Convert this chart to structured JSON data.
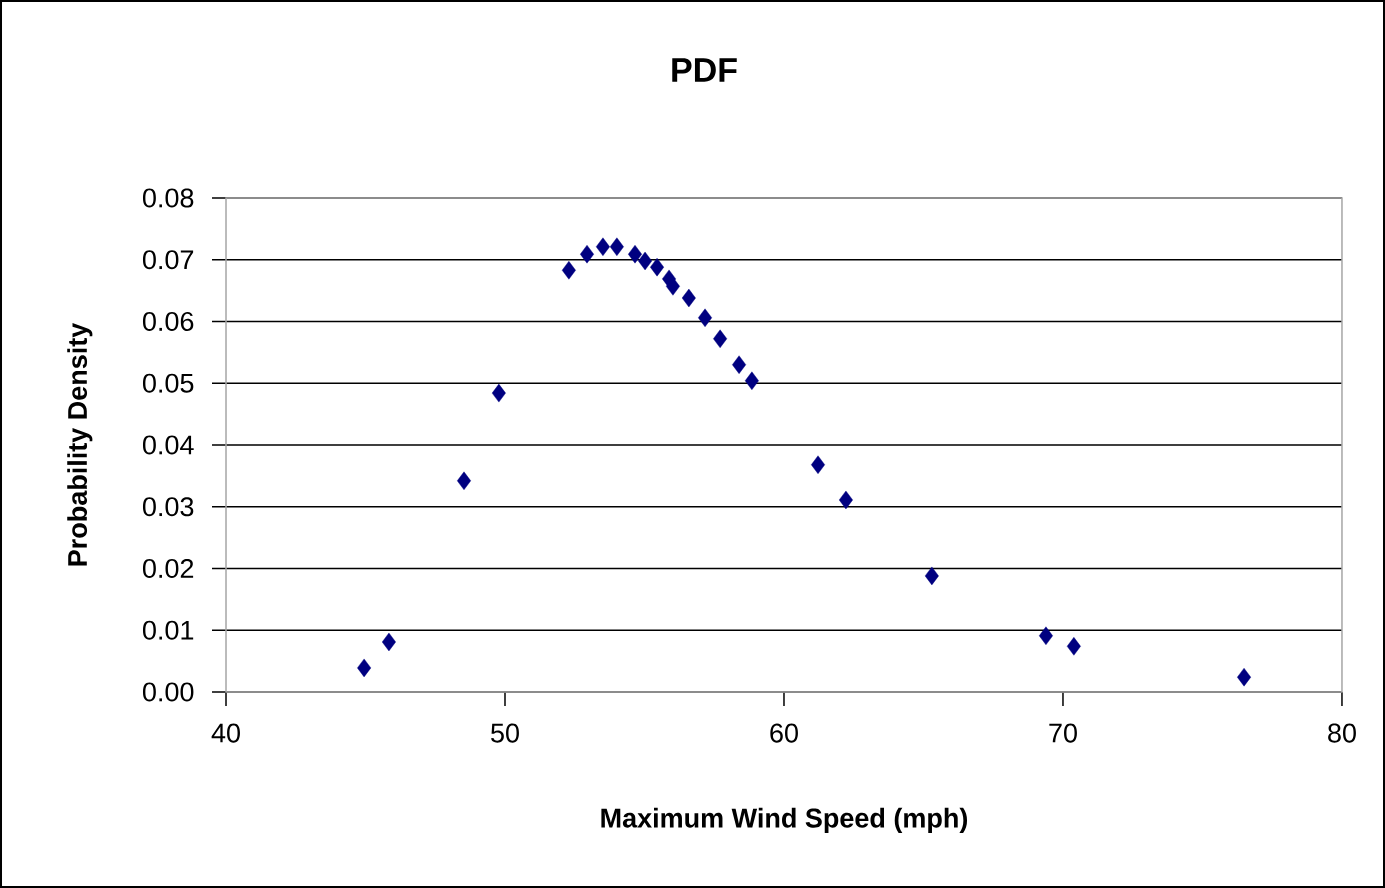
{
  "chart_data": {
    "type": "scatter",
    "title": "PDF",
    "xlabel": "Maximum Wind Speed (mph)",
    "ylabel": "Probability Density",
    "x": [
      44.95,
      45.84,
      48.53,
      49.78,
      52.29,
      52.94,
      53.51,
      54.01,
      54.66,
      55.02,
      55.45,
      55.88,
      56.02,
      56.59,
      57.17,
      57.71,
      58.39,
      58.85,
      61.22,
      62.22,
      65.3,
      69.39,
      70.39,
      76.49
    ],
    "values": [
      0.0039,
      0.0081,
      0.0342,
      0.0484,
      0.0683,
      0.0709,
      0.0721,
      0.0721,
      0.0709,
      0.0698,
      0.0688,
      0.0669,
      0.0657,
      0.0638,
      0.0606,
      0.0572,
      0.053,
      0.0504,
      0.0368,
      0.0311,
      0.0188,
      0.0091,
      0.0074,
      0.0024
    ],
    "color": "#000080",
    "marker": "diamond",
    "grid": "y",
    "xlim": [
      40,
      80
    ],
    "xticks": [
      40,
      50,
      60,
      70,
      80
    ],
    "ylim": [
      0,
      0.08
    ],
    "yticks": [
      {
        "value": 0,
        "label": "0.00"
      },
      {
        "value": 0.01,
        "label": "0.01"
      },
      {
        "value": 0.02,
        "label": "0.02"
      },
      {
        "value": 0.03,
        "label": "0.03"
      },
      {
        "value": 0.04,
        "label": "0.04"
      },
      {
        "value": 0.05,
        "label": "0.05"
      },
      {
        "value": 0.06,
        "label": "0.06"
      },
      {
        "value": 0.07,
        "label": "0.07"
      },
      {
        "value": 0.08,
        "label": "0.08"
      }
    ]
  }
}
